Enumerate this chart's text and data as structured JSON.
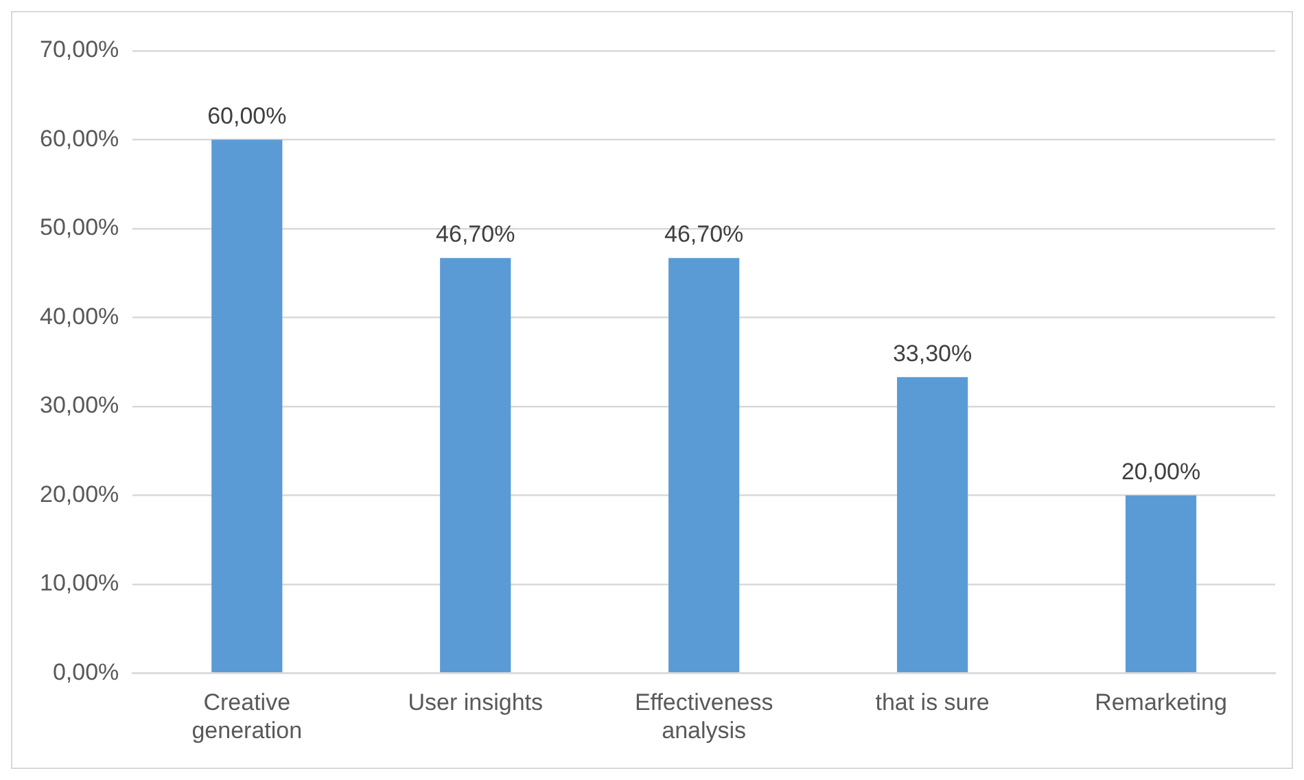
{
  "chart_data": {
    "type": "bar",
    "categories": [
      "Creative generation",
      "User insights",
      "Effectiveness analysis",
      "that is sure",
      "Remarketing"
    ],
    "values": [
      60,
      46.7,
      46.7,
      33.3,
      20
    ],
    "value_labels": [
      "60,00%",
      "46,70%",
      "46,70%",
      "33,30%",
      "20,00%"
    ],
    "color": "#5b9bd5",
    "ylim": [
      0,
      70
    ],
    "yticks": [
      {
        "value": 0,
        "label": "0,00%"
      },
      {
        "value": 10,
        "label": "10,00%"
      },
      {
        "value": 20,
        "label": "20,00%"
      },
      {
        "value": 30,
        "label": "30,00%"
      },
      {
        "value": 40,
        "label": "40,00%"
      },
      {
        "value": 50,
        "label": "50,00%"
      },
      {
        "value": 60,
        "label": "60,00%"
      },
      {
        "value": 70,
        "label": "70,00%"
      }
    ],
    "grid": "y"
  }
}
